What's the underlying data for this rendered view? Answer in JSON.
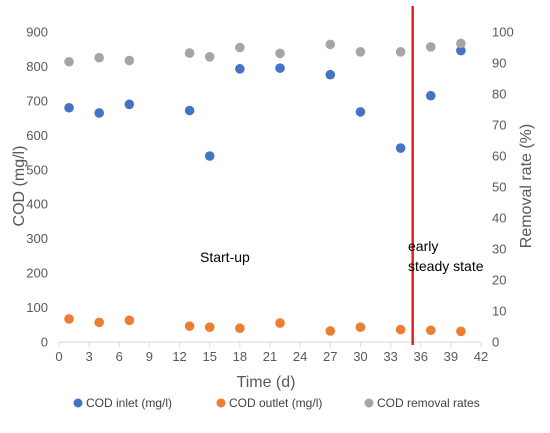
{
  "chart_data": {
    "type": "scatter",
    "xlabel": "Time (d)",
    "ylabel": "COD (mg/l)",
    "y2label": "Removal rate (%)",
    "xlim": [
      0,
      42
    ],
    "ylim": [
      0,
      900
    ],
    "y2lim": [
      0,
      100
    ],
    "x_ticks": [
      "0",
      "3",
      "6",
      "9",
      "12",
      "15",
      "18",
      "21",
      "24",
      "27",
      "30",
      "33",
      "36",
      "39",
      "42"
    ],
    "y_ticks": [
      "0",
      "100",
      "200",
      "300",
      "400",
      "500",
      "600",
      "700",
      "800",
      "900"
    ],
    "y2_ticks": [
      "0",
      "10",
      "20",
      "30",
      "40",
      "50",
      "60",
      "70",
      "80",
      "90",
      "100"
    ],
    "grid": false,
    "legend_position": "bottom",
    "annotations": {
      "start_label": "Start-up",
      "steady_label_line1": "early",
      "steady_label_line2": "steady state",
      "divider_x": 35.2,
      "divider_color": "#E3211C"
    },
    "series": [
      {
        "name": "COD inlet (mg/l)",
        "axis": "left",
        "color": "#4472C4",
        "x": [
          1,
          4,
          7,
          13,
          15,
          18,
          22,
          27,
          30,
          34,
          37,
          40
        ],
        "y": [
          680,
          665,
          690,
          672,
          540,
          793,
          795,
          776,
          668,
          563,
          715,
          846
        ]
      },
      {
        "name": "COD outlet (mg/l)",
        "axis": "left",
        "color": "#ED7D31",
        "x": [
          1,
          4,
          7,
          13,
          15,
          18,
          22,
          27,
          30,
          34,
          37,
          40
        ],
        "y": [
          67,
          57,
          63,
          46,
          43,
          40,
          55,
          32,
          43,
          36,
          34,
          31
        ]
      },
      {
        "name": "COD removal rates",
        "axis": "right",
        "color": "#A5A5A5",
        "x": [
          1,
          4,
          7,
          13,
          15,
          18,
          22,
          27,
          30,
          34,
          37,
          40
        ],
        "y": [
          90.4,
          91.7,
          90.8,
          93.2,
          92.0,
          95.0,
          93.1,
          96.0,
          93.6,
          93.6,
          95.2,
          96.3
        ]
      }
    ]
  }
}
